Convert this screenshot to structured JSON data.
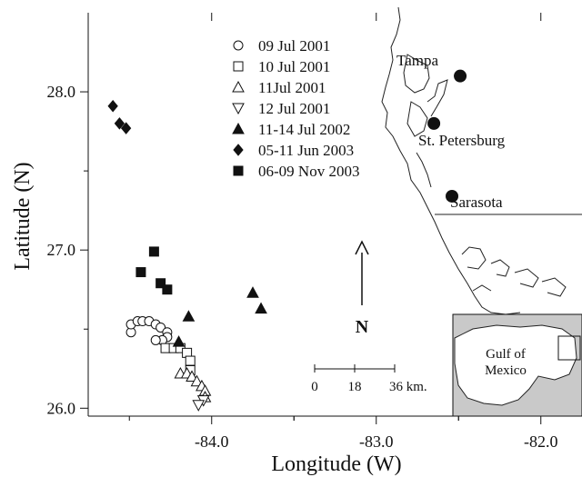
{
  "axes": {
    "xlabel": "Longitude (W)",
    "ylabel": "Latitude (N)",
    "xlim": [
      -84.75,
      -81.75
    ],
    "ylim": [
      25.95,
      28.5
    ],
    "xticks": [
      {
        "value": -84.0,
        "label": "-84.0"
      },
      {
        "value": -83.0,
        "label": "-83.0"
      },
      {
        "value": -82.0,
        "label": "-82.0"
      }
    ],
    "yticks": [
      {
        "value": 28.0,
        "label": "28.0"
      },
      {
        "value": 27.0,
        "label": "27.0"
      },
      {
        "value": 26.0,
        "label": "26.0"
      }
    ]
  },
  "legend": {
    "placement": "top-center",
    "entries": [
      {
        "label": "09 Jul 2001",
        "marker": "circle-open"
      },
      {
        "label": "10 Jul 2001",
        "marker": "square-open"
      },
      {
        "label": "11Jul 2001",
        "marker": "triangle-up-open"
      },
      {
        "label": "12 Jul 2001",
        "marker": "triangle-down-open"
      },
      {
        "label": "11-14 Jul 2002",
        "marker": "triangle-up-filled"
      },
      {
        "label": "05-11 Jun 2003",
        "marker": "diamond-filled"
      },
      {
        "label": "06-09 Nov 2003",
        "marker": "square-filled"
      }
    ]
  },
  "chart_data": {
    "type": "scatter",
    "series": [
      {
        "name": "09 Jul 2001",
        "marker": "circle-open",
        "points": [
          [
            -84.49,
            26.48
          ],
          [
            -84.49,
            26.53
          ],
          [
            -84.45,
            26.55
          ],
          [
            -84.42,
            26.55
          ],
          [
            -84.38,
            26.55
          ],
          [
            -84.34,
            26.53
          ],
          [
            -84.31,
            26.51
          ],
          [
            -84.27,
            26.48
          ],
          [
            -84.27,
            26.45
          ],
          [
            -84.3,
            26.43
          ],
          [
            -84.34,
            26.43
          ]
        ]
      },
      {
        "name": "10 Jul 2001",
        "marker": "square-open",
        "points": [
          [
            -84.28,
            26.38
          ],
          [
            -84.23,
            26.38
          ],
          [
            -84.19,
            26.38
          ],
          [
            -84.15,
            26.35
          ],
          [
            -84.13,
            26.3
          ],
          [
            -84.13,
            26.24
          ]
        ]
      },
      {
        "name": "11Jul 2001",
        "marker": "triangle-up-open",
        "points": [
          [
            -84.19,
            26.22
          ],
          [
            -84.15,
            26.22
          ],
          [
            -84.12,
            26.2
          ],
          [
            -84.09,
            26.17
          ],
          [
            -84.06,
            26.14
          ],
          [
            -84.04,
            26.11
          ],
          [
            -84.04,
            26.07
          ]
        ]
      },
      {
        "name": "12 Jul 2001",
        "marker": "triangle-down-open",
        "points": [
          [
            -84.05,
            26.05
          ],
          [
            -84.08,
            26.02
          ]
        ]
      },
      {
        "name": "11-14 Jul 2002",
        "marker": "triangle-up-filled",
        "points": [
          [
            -84.14,
            26.58
          ],
          [
            -84.2,
            26.42
          ],
          [
            -83.75,
            26.73
          ],
          [
            -83.7,
            26.63
          ]
        ]
      },
      {
        "name": "05-11 Jun 2003",
        "marker": "diamond-filled",
        "points": [
          [
            -84.6,
            27.91
          ],
          [
            -84.56,
            27.8
          ],
          [
            -84.52,
            27.77
          ]
        ]
      },
      {
        "name": "06-09 Nov 2003",
        "marker": "square-filled",
        "points": [
          [
            -84.35,
            26.99
          ],
          [
            -84.43,
            26.86
          ],
          [
            -84.31,
            26.79
          ],
          [
            -84.27,
            26.75
          ]
        ]
      }
    ]
  },
  "compass": {
    "label": "N"
  },
  "scale_bar": {
    "ticks": [
      "0",
      "18",
      "36 km."
    ]
  },
  "cities": [
    {
      "name": "Tampa",
      "lon": -82.49,
      "lat": 28.1
    },
    {
      "name": "St. Petersburg",
      "lon": -82.65,
      "lat": 27.8
    },
    {
      "name": "Sarasota",
      "lon": -82.54,
      "lat": 27.34
    }
  ],
  "inset": {
    "label_line1": "Gulf of",
    "label_line2": "Mexico"
  }
}
